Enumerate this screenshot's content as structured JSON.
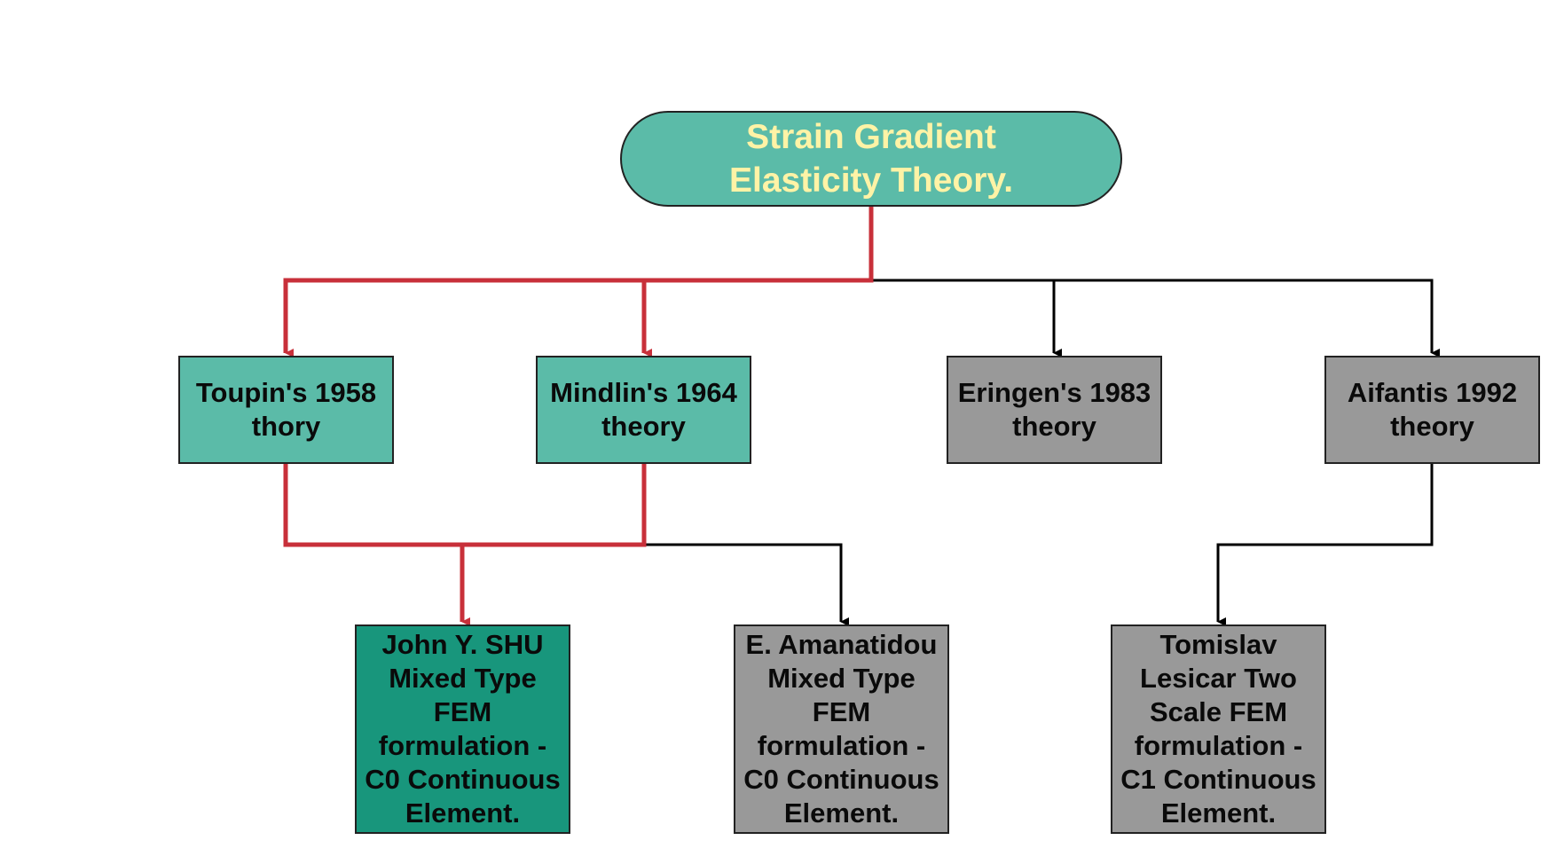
{
  "diagram": {
    "root": {
      "label_line1": "Strain Gradient",
      "label_line2": "Elasticity Theory."
    },
    "theories": [
      {
        "line1": "Toupin's 1958",
        "line2": "thory"
      },
      {
        "line1": "Mindlin's 1964",
        "line2": "theory"
      },
      {
        "line1": "Eringen's 1983",
        "line2": "theory"
      },
      {
        "line1": "Aifantis 1992",
        "line2": "theory"
      }
    ],
    "formulations": [
      {
        "lines": [
          "John Y. SHU",
          "Mixed Type",
          "FEM",
          "formulation -",
          "C0 Continuous",
          "Element."
        ]
      },
      {
        "lines": [
          "E. Amanatidou",
          "Mixed Type",
          "FEM",
          "formulation -",
          "C0 Continuous",
          "Element."
        ]
      },
      {
        "lines": [
          "Tomislav",
          "Lesicar Two",
          "Scale FEM",
          "formulation -",
          "C1 Continuous",
          "Element."
        ]
      }
    ],
    "colors": {
      "highlight_path": "#c8303a",
      "normal_path": "#000000",
      "root_fill": "#5bbba8",
      "root_text": "#fff3a6",
      "teal_fill": "#5bbba8",
      "dark_teal_fill": "#18967c",
      "gray_fill": "#999999"
    }
  }
}
